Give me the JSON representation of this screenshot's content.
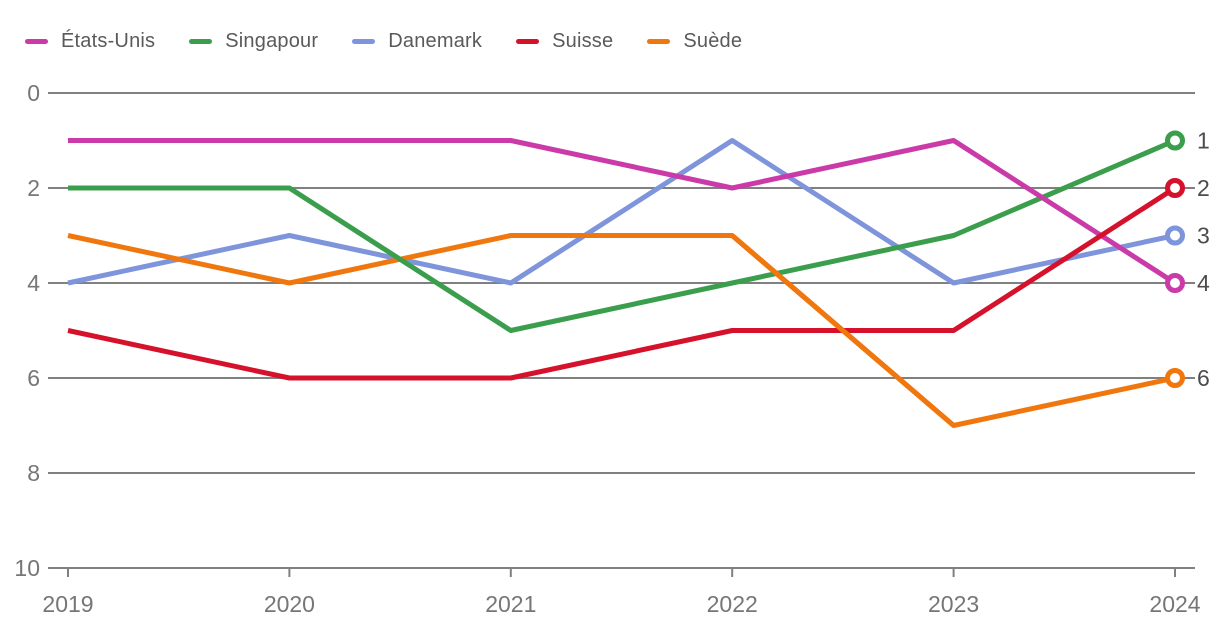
{
  "chart_data": {
    "type": "line",
    "title": "",
    "x": [
      2019,
      2020,
      2021,
      2022,
      2023,
      2024
    ],
    "series": [
      {
        "name": "États-Unis",
        "color": "#ca3aa8",
        "values": [
          1,
          1,
          1,
          2,
          1,
          4
        ],
        "end_label": "4"
      },
      {
        "name": "Singapour",
        "color": "#3b9e4d",
        "values": [
          2,
          2,
          5,
          4,
          3,
          1
        ],
        "end_label": "1"
      },
      {
        "name": "Danemark",
        "color": "#7e94db",
        "values": [
          4,
          3,
          4,
          1,
          4,
          3
        ],
        "end_label": "3"
      },
      {
        "name": "Suisse",
        "color": "#d6112b",
        "values": [
          5,
          6,
          6,
          5,
          5,
          2
        ],
        "end_label": "2"
      },
      {
        "name": "Suède",
        "color": "#f0770e",
        "values": [
          3,
          4,
          3,
          3,
          7,
          6
        ],
        "end_label": "6"
      }
    ],
    "y_axis": {
      "ticks": [
        0,
        2,
        4,
        6,
        8,
        10
      ],
      "range": [
        0,
        10
      ],
      "inverted": true
    },
    "x_axis": {
      "tick_labels": [
        "2019",
        "2020",
        "2021",
        "2022",
        "2023",
        "2024"
      ]
    },
    "legend_position": "top",
    "grid": "horizontal",
    "end_marker": "open-circle",
    "colors": {
      "gridline": "#808080",
      "axis_text": "#767676",
      "legend_text": "#5a5a5a",
      "end_label_text": "#4c4c4c",
      "background": "#ffffff"
    }
  }
}
